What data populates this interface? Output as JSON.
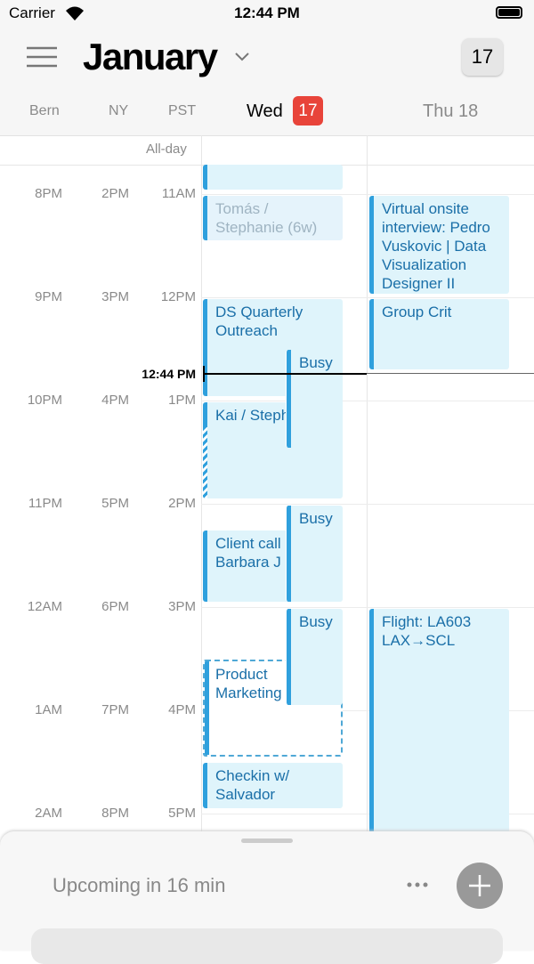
{
  "status_bar": {
    "carrier": "Carrier",
    "time": "12:44 PM"
  },
  "header": {
    "month": "January",
    "today_button": "17"
  },
  "timezones": [
    "Bern",
    "NY",
    "PST"
  ],
  "days": [
    {
      "weekday": "Wed",
      "date": "17"
    },
    {
      "label": "Thu 18"
    }
  ],
  "all_day_label": "All-day",
  "hours": [
    [
      "8PM",
      "2PM",
      "11AM"
    ],
    [
      "9PM",
      "3PM",
      "12PM"
    ],
    [
      "10PM",
      "4PM",
      "1PM"
    ],
    [
      "11PM",
      "5PM",
      "2PM"
    ],
    [
      "12AM",
      "6PM",
      "3PM"
    ],
    [
      "1AM",
      "7PM",
      "4PM"
    ],
    [
      "2AM",
      "8PM",
      "5PM"
    ]
  ],
  "current_time": "12:44 PM",
  "events": [
    "Tomás / Stephanie (6w)",
    "Virtual onsite interview: Pedro Vuskovic | Data Visualization Designer II",
    "DS Quarterly Outreach",
    "Busy",
    "Group Crit",
    "Kai / Stephanie",
    "Busy",
    "Client call Barbara J",
    "Busy",
    "Product Marketing",
    "Flight: LA603 LAX→SCL",
    "Checkin w/ Salvador"
  ],
  "bottom_sheet": {
    "upcoming": "Upcoming in 16 min"
  }
}
